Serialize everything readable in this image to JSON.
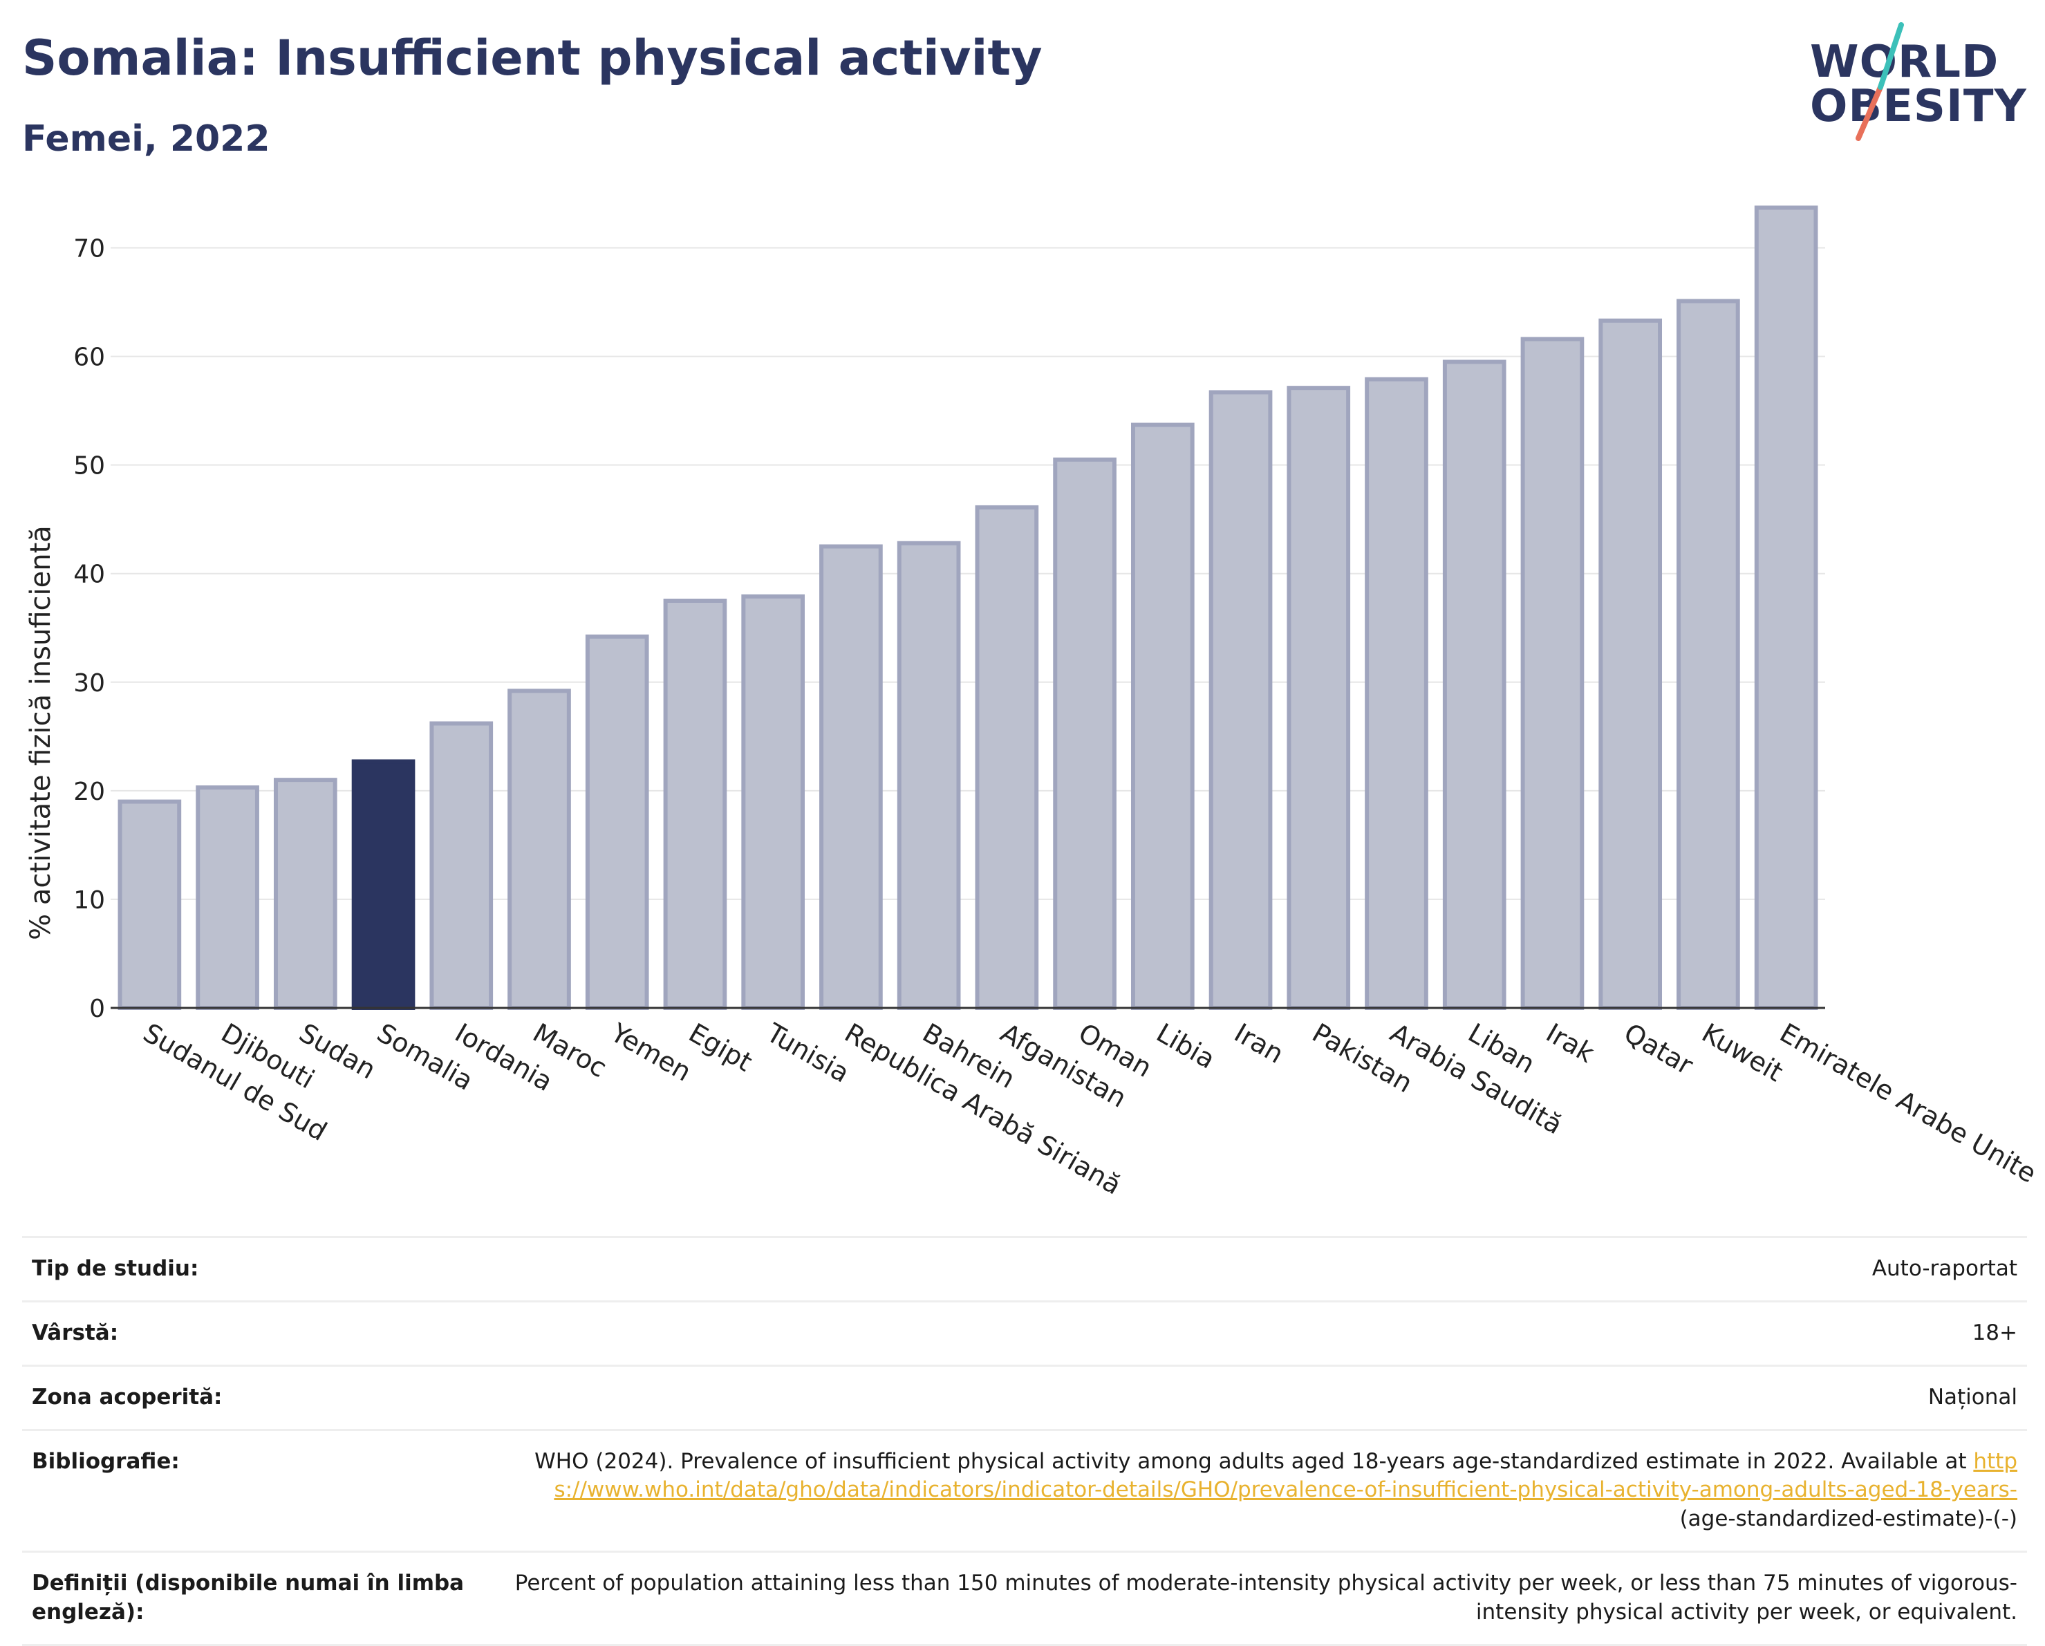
{
  "header": {
    "title": "Somalia: Insufficient physical activity",
    "subtitle": "Femei, 2022"
  },
  "logo": {
    "line1": "WORLD",
    "line2": "OBESITY",
    "colors": {
      "teal": "#3cc0b9",
      "coral": "#e8705a",
      "navy": "#2b3560"
    }
  },
  "chart_data": {
    "type": "bar",
    "title": "Somalia: Insufficient physical activity",
    "subtitle": "Femei, 2022",
    "xlabel": "",
    "ylabel": "% activitate fizică insuficientă",
    "ylim": [
      0,
      75
    ],
    "yticks": [
      0,
      10,
      20,
      30,
      40,
      50,
      60,
      70
    ],
    "grid": true,
    "highlight": "Somalia",
    "colors": {
      "bar": "#bcc0cf",
      "bar_edge": "#a0a5be",
      "highlight": "#2b3560"
    },
    "categories": [
      "Sudanul de Sud",
      "Djibouti",
      "Sudan",
      "Somalia",
      "Iordania",
      "Maroc",
      "Yemen",
      "Egipt",
      "Tunisia",
      "Republica Arabă Siriană",
      "Bahrein",
      "Afganistan",
      "Oman",
      "Libia",
      "Iran",
      "Pakistan",
      "Arabia Saudită",
      "Liban",
      "Irak",
      "Qatar",
      "Kuweit",
      "Emiratele Arabe Unite"
    ],
    "values": [
      19.0,
      20.3,
      21.0,
      22.7,
      26.2,
      29.2,
      34.2,
      37.5,
      37.9,
      42.5,
      42.8,
      46.1,
      50.5,
      53.7,
      56.7,
      57.1,
      57.9,
      59.5,
      61.6,
      63.3,
      65.1,
      73.7
    ]
  },
  "info": {
    "study_type": {
      "label": "Tip de studiu:",
      "value": "Auto-raportat"
    },
    "age": {
      "label": "Vârstă:",
      "value": "18+"
    },
    "coverage": {
      "label": "Zona acoperită:",
      "value": "Național"
    },
    "bibliography": {
      "label": "Bibliografie:",
      "text": "WHO (2024). Prevalence of insufficient physical activity among adults aged 18-years age-standardized estimate in 2022. Available at",
      "link": "https://www.who.int/data/gho/data/indicators/indicator-details/GHO/prevalence-of-insufficient-physical-activity-among-adults-aged-18-years-",
      "suffix": "(age-standardized-estimate)-(-)"
    },
    "definitions": {
      "label": "Definiții (disponibile numai în limba engleză):",
      "value": "Percent of population attaining less than 150 minutes of moderate-intensity physical activity per week, or less than 75 minutes of vigorous-intensity physical activity per week, or equivalent."
    }
  }
}
